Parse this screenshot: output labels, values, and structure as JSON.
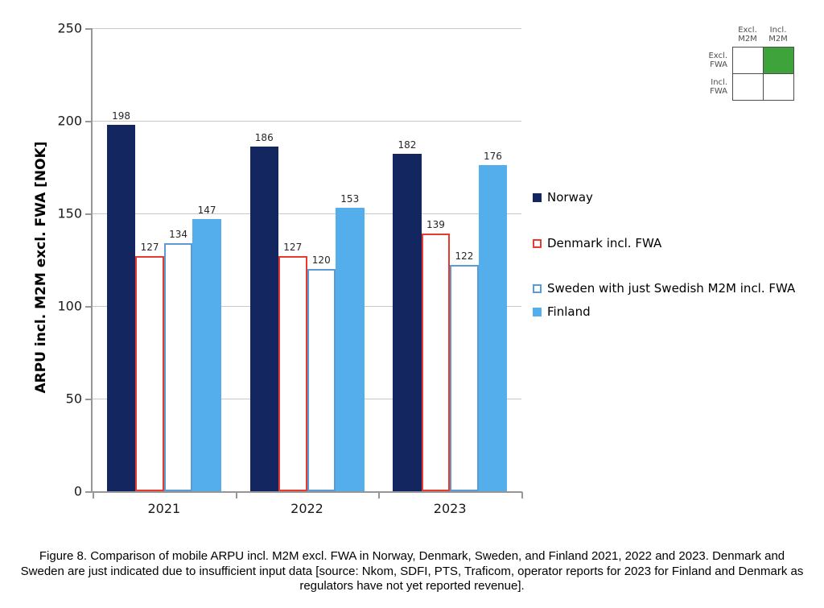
{
  "chart_data": {
    "type": "bar",
    "title": "",
    "ylabel": "ARPU incl. M2M excl. FWA [NOK]",
    "xlabel": "",
    "ylim": [
      0,
      250
    ],
    "yticks": [
      0,
      50,
      100,
      150,
      200,
      250
    ],
    "grid": "horizontal",
    "legend_position": "right",
    "categories": [
      "2021",
      "2022",
      "2023"
    ],
    "series": [
      {
        "name": "Norway",
        "values": [
          198,
          186,
          182
        ],
        "fill": "#13265F",
        "border": "#13265F"
      },
      {
        "name": "Denmark incl. FWA",
        "values": [
          127,
          127,
          139
        ],
        "fill": "#FFFFFF",
        "border": "#E83B30"
      },
      {
        "name": "Sweden with just Swedish M2M incl. FWA",
        "values": [
          134,
          120,
          122
        ],
        "fill": "#FFFFFF",
        "border": "#5B9BD5"
      },
      {
        "name": "Finland",
        "values": [
          147,
          153,
          176
        ],
        "fill": "#54AEEB",
        "border": "#54AEEB"
      }
    ],
    "colors": {
      "gridline": "#c8c8c8",
      "axis": "#969696"
    }
  },
  "matrix_legend": {
    "col_labels": [
      "Excl. M2M",
      "Incl. M2M"
    ],
    "row_labels": [
      "Excl. FWA",
      "Incl. FWA"
    ],
    "highlighted_cell": "excl-fwa-incl-m2m",
    "highlight_color": "#3EA33A"
  },
  "caption": "Figure 8. Comparison of mobile ARPU incl. M2M excl. FWA in Norway, Denmark, Sweden, and Finland 2021, 2022 and 2023. Denmark and Sweden are just indicated due to insufficient input data [source: Nkom, SDFI, PTS, Traficom, operator reports for 2023 for Finland and Denmark as regulators have not yet reported revenue]."
}
